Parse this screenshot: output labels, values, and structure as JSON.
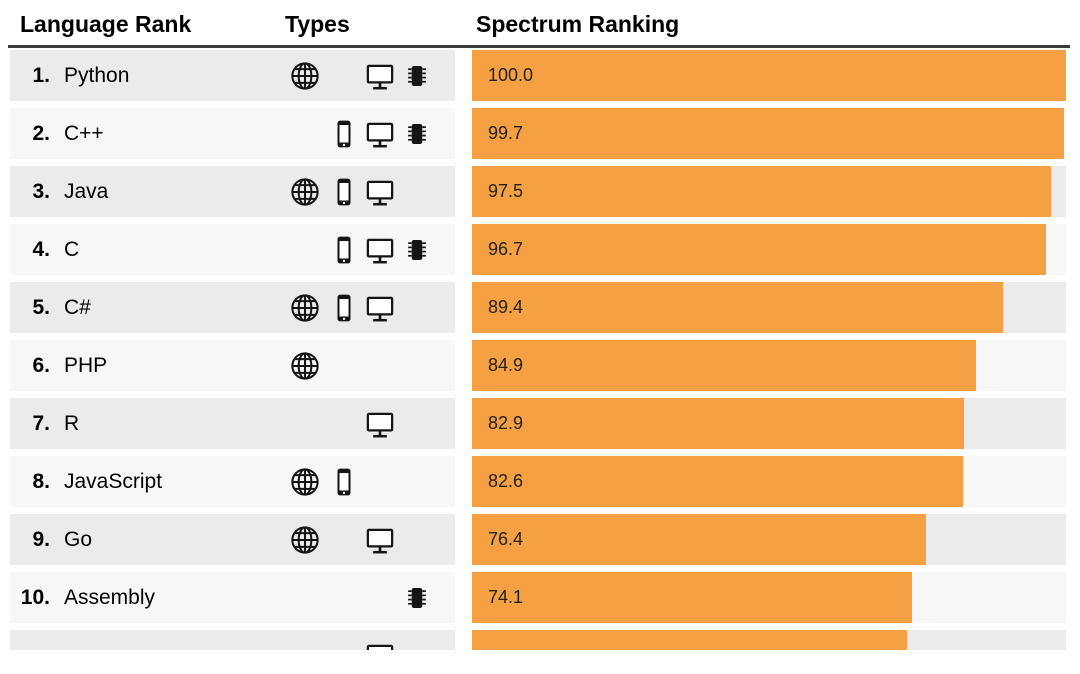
{
  "header": {
    "language_rank": "Language Rank",
    "types": "Types",
    "spectrum_ranking": "Spectrum Ranking"
  },
  "colors": {
    "bar": "#F5A143",
    "row_odd": "#EBEBEB",
    "row_even": "#F7F7F7",
    "header_rule": "#3A3A3A",
    "icon": "#151515",
    "value_text": "#231F20"
  },
  "type_icons": {
    "web": "globe-icon",
    "mobile": "smartphone-icon",
    "desktop": "monitor-icon",
    "embedded": "chip-icon"
  },
  "chart_data": {
    "type": "bar",
    "orientation": "horizontal",
    "title": "Spectrum Ranking",
    "xlim": [
      0,
      100
    ],
    "bar_color": "#F5A143",
    "columns": [
      "Language Rank",
      "Types",
      "Spectrum Ranking"
    ],
    "categories": [
      "Python",
      "C++",
      "Java",
      "C",
      "C#",
      "PHP",
      "R",
      "JavaScript",
      "Go",
      "Assembly"
    ],
    "values": [
      100.0,
      99.7,
      97.5,
      96.7,
      89.4,
      84.9,
      82.9,
      82.6,
      76.4,
      74.1
    ],
    "rows": [
      {
        "rank": "1.",
        "language": "Python",
        "types": [
          "web",
          "desktop",
          "embedded"
        ],
        "value": 100.0,
        "label": "100.0"
      },
      {
        "rank": "2.",
        "language": "C++",
        "types": [
          "mobile",
          "desktop",
          "embedded"
        ],
        "value": 99.7,
        "label": "99.7"
      },
      {
        "rank": "3.",
        "language": "Java",
        "types": [
          "web",
          "mobile",
          "desktop"
        ],
        "value": 97.5,
        "label": "97.5"
      },
      {
        "rank": "4.",
        "language": "C",
        "types": [
          "mobile",
          "desktop",
          "embedded"
        ],
        "value": 96.7,
        "label": "96.7"
      },
      {
        "rank": "5.",
        "language": "C#",
        "types": [
          "web",
          "mobile",
          "desktop"
        ],
        "value": 89.4,
        "label": "89.4"
      },
      {
        "rank": "6.",
        "language": "PHP",
        "types": [
          "web"
        ],
        "value": 84.9,
        "label": "84.9"
      },
      {
        "rank": "7.",
        "language": "R",
        "types": [
          "desktop"
        ],
        "value": 82.9,
        "label": "82.9"
      },
      {
        "rank": "8.",
        "language": "JavaScript",
        "types": [
          "web",
          "mobile"
        ],
        "value": 82.6,
        "label": "82.6"
      },
      {
        "rank": "9.",
        "language": "Go",
        "types": [
          "web",
          "desktop"
        ],
        "value": 76.4,
        "label": "76.4"
      },
      {
        "rank": "10.",
        "language": "Assembly",
        "types": [
          "embedded"
        ],
        "value": 74.1,
        "label": "74.1"
      },
      {
        "rank": "",
        "language": "",
        "types": [
          "desktop"
        ],
        "value": 73.2,
        "label": "",
        "partial": true
      }
    ]
  }
}
